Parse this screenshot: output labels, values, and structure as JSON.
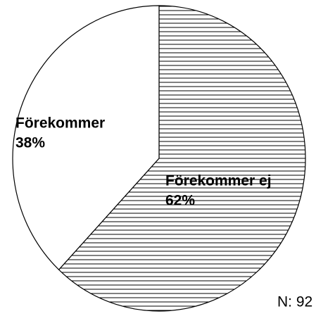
{
  "chart_data": {
    "type": "pie",
    "categories": [
      "Förekommer ej",
      "Förekommer"
    ],
    "values": [
      62,
      38
    ],
    "value_labels": [
      "62%",
      "38%"
    ],
    "hatch": [
      "horizontal",
      null
    ],
    "annotation": "N: 92"
  }
}
